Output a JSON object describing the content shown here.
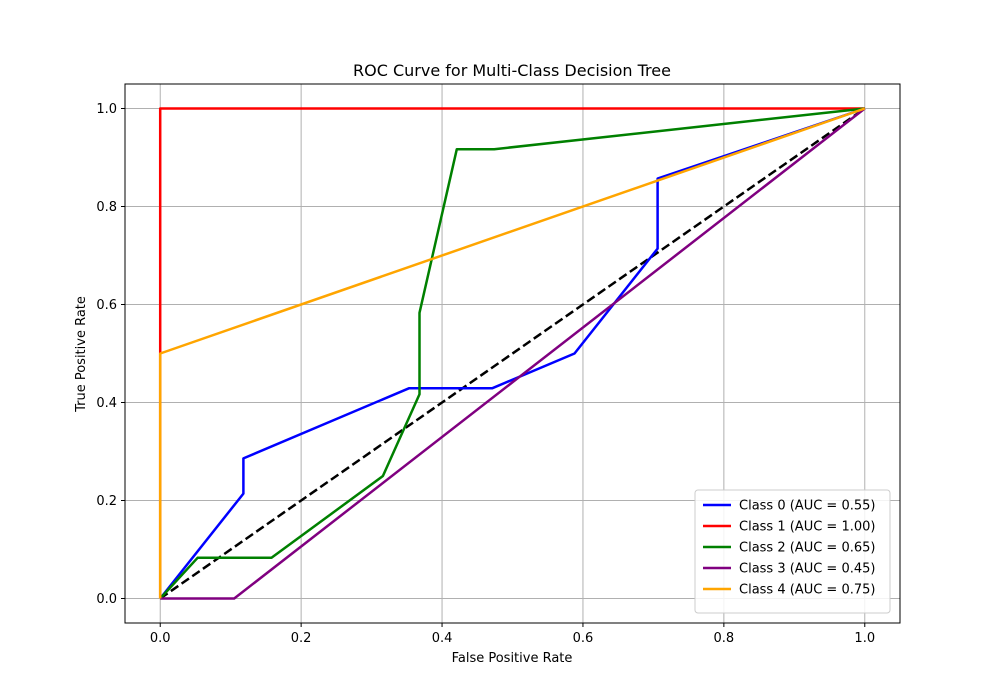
{
  "chart_data": {
    "type": "line",
    "title": "ROC Curve for Multi-Class Decision Tree",
    "xlabel": "False Positive Rate",
    "ylabel": "True Positive Rate",
    "xlim": [
      -0.05,
      1.05
    ],
    "ylim": [
      -0.05,
      1.05
    ],
    "xticks": [
      "0.0",
      "0.2",
      "0.4",
      "0.6",
      "0.8",
      "1.0"
    ],
    "yticks": [
      "0.0",
      "0.2",
      "0.4",
      "0.6",
      "0.8",
      "1.0"
    ],
    "grid": true,
    "legend_position": "lower-right",
    "series": [
      {
        "name": "Class 0 (AUC = 0.55)",
        "color": "#0000ff",
        "x": [
          0.0,
          0.118,
          0.118,
          0.353,
          0.471,
          0.588,
          0.706,
          0.706,
          1.0
        ],
        "y": [
          0.0,
          0.214,
          0.286,
          0.429,
          0.429,
          0.5,
          0.714,
          0.857,
          1.0
        ]
      },
      {
        "name": "Class 1 (AUC = 1.00)",
        "color": "#ff0000",
        "x": [
          0.0,
          0.0,
          0.0,
          1.0
        ],
        "y": [
          0.0,
          0.5,
          1.0,
          1.0
        ]
      },
      {
        "name": "Class 2 (AUC = 0.65)",
        "color": "#008000",
        "x": [
          0.0,
          0.053,
          0.158,
          0.316,
          0.368,
          0.368,
          0.421,
          0.474,
          1.0
        ],
        "y": [
          0.0,
          0.083,
          0.083,
          0.25,
          0.417,
          0.583,
          0.917,
          0.917,
          1.0
        ]
      },
      {
        "name": "Class 3 (AUC = 0.45)",
        "color": "#800080",
        "x": [
          0.0,
          0.105,
          1.0
        ],
        "y": [
          0.0,
          0.0,
          1.0
        ]
      },
      {
        "name": "Class 4 (AUC = 0.75)",
        "color": "#ffa500",
        "x": [
          0.0,
          0.0,
          1.0
        ],
        "y": [
          0.0,
          0.5,
          1.0
        ]
      }
    ],
    "reference_line": {
      "x": [
        0.0,
        1.0
      ],
      "y": [
        0.0,
        1.0
      ],
      "color": "#000000",
      "style": "dashed"
    }
  }
}
